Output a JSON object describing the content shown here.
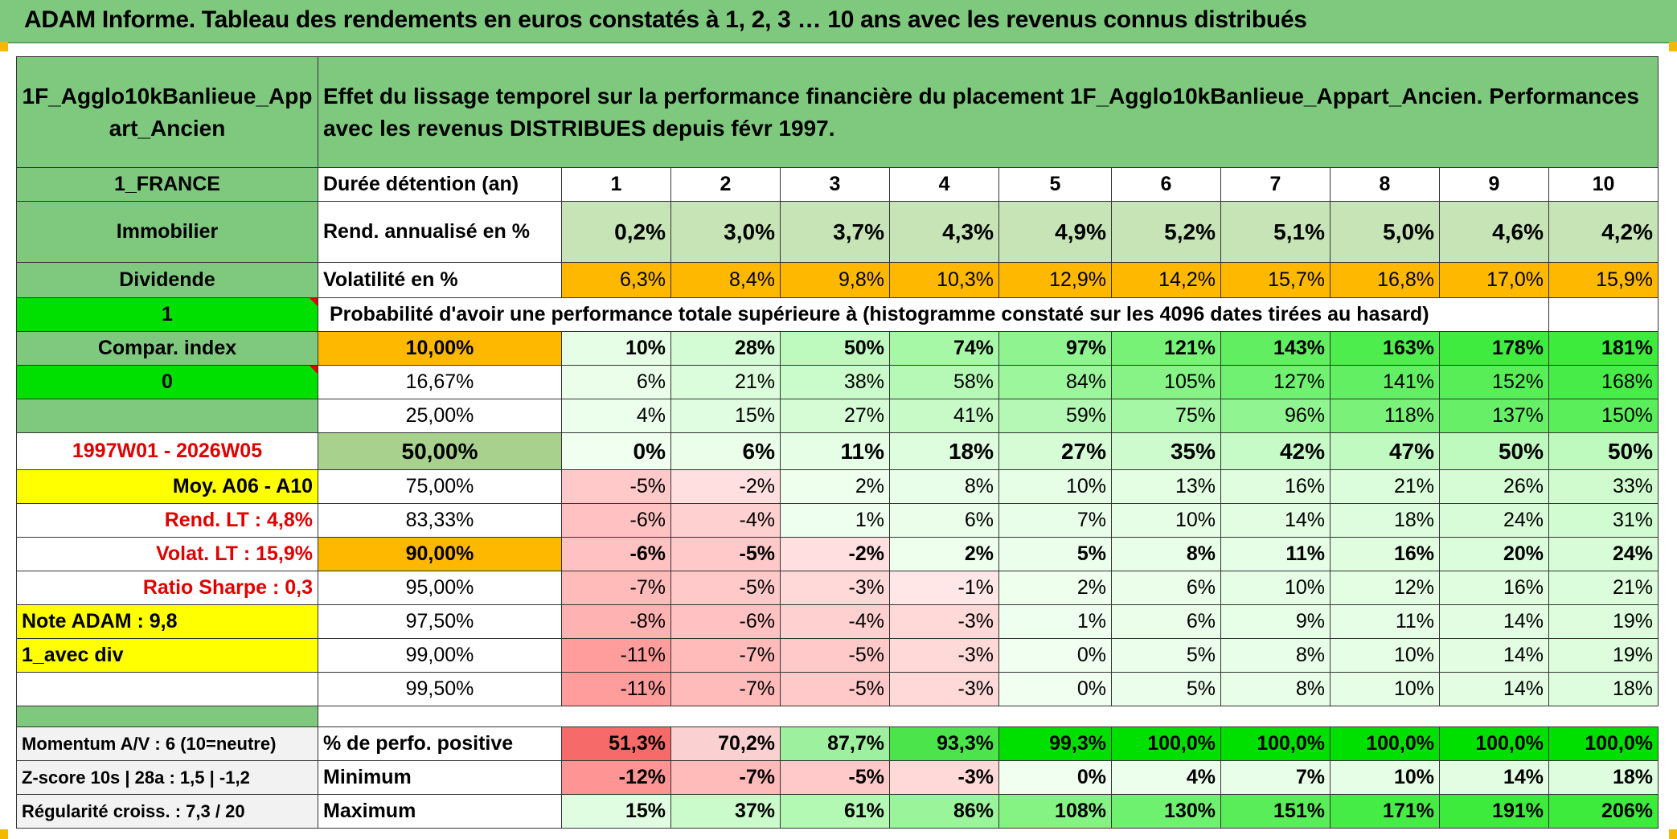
{
  "title": "ADAM Informe. Tableau des rendements en euros constatés à 1, 2, 3 … 10 ans avec les revenus connus distribués",
  "header": {
    "fund_name": "1F_Agglo10kBanlieue_App art_Ancien",
    "description": "Effet du lissage temporel sur la performance financière du placement 1F_Agglo10kBanlieue_Appart_Ancien. Performances avec les revenus DISTRIBUES depuis févr 1997."
  },
  "left": {
    "country": "1_FRANCE",
    "asset_class": "Immobilier",
    "income_type": "Dividende",
    "flag1": "1",
    "compar_index": "Compar. index",
    "flag0": "0",
    "period": "1997W01 - 2026W05",
    "moy": "Moy. A06 - A10",
    "rend_lt": "Rend. LT :   4,8%",
    "volat_lt": "Volat. LT :   15,9%",
    "sharpe": "Ratio Sharpe :    0,3",
    "note": "Note ADAM : 9,8",
    "avec_div": "1_avec div",
    "momentum": "Momentum A/V : 6 (10=neutre)",
    "zscore": "Z-score 10s | 28a : 1,5 | -1,2",
    "regularite": "Régularité croiss. : 7,3 / 20"
  },
  "labels": {
    "duree": "Durée détention (an)",
    "rend": "Rend. annualisé en %",
    "vol": "Volatilité en %",
    "proba": "Probabilité d'avoir une performance totale supérieure à (histogramme constaté sur les 4096 dates tirées au hasard)",
    "pct_pos": "% de perfo. positive",
    "min": "Minimum",
    "max": "Maximum"
  },
  "years": [
    "1",
    "2",
    "3",
    "4",
    "5",
    "6",
    "7",
    "8",
    "9",
    "10"
  ],
  "rend": [
    "0,2%",
    "3,0%",
    "3,7%",
    "4,3%",
    "4,9%",
    "5,2%",
    "5,1%",
    "5,0%",
    "4,6%",
    "4,2%"
  ],
  "vol": [
    "6,3%",
    "8,4%",
    "9,8%",
    "10,3%",
    "12,9%",
    "14,2%",
    "15,7%",
    "16,8%",
    "17,0%",
    "15,9%"
  ],
  "quantiles": [
    {
      "q": "10,00%",
      "v": [
        "10%",
        "28%",
        "50%",
        "74%",
        "97%",
        "121%",
        "143%",
        "163%",
        "178%",
        "181%"
      ]
    },
    {
      "q": "16,67%",
      "v": [
        "6%",
        "21%",
        "38%",
        "58%",
        "84%",
        "105%",
        "127%",
        "141%",
        "152%",
        "168%"
      ]
    },
    {
      "q": "25,00%",
      "v": [
        "4%",
        "15%",
        "27%",
        "41%",
        "59%",
        "75%",
        "96%",
        "118%",
        "137%",
        "150%"
      ]
    },
    {
      "q": "50,00%",
      "v": [
        "0%",
        "6%",
        "11%",
        "18%",
        "27%",
        "35%",
        "42%",
        "47%",
        "50%",
        "50%"
      ]
    },
    {
      "q": "75,00%",
      "v": [
        "-5%",
        "-2%",
        "2%",
        "8%",
        "10%",
        "13%",
        "16%",
        "21%",
        "26%",
        "33%"
      ]
    },
    {
      "q": "83,33%",
      "v": [
        "-6%",
        "-4%",
        "1%",
        "6%",
        "7%",
        "10%",
        "14%",
        "18%",
        "24%",
        "31%"
      ]
    },
    {
      "q": "90,00%",
      "v": [
        "-6%",
        "-5%",
        "-2%",
        "2%",
        "5%",
        "8%",
        "11%",
        "16%",
        "20%",
        "24%"
      ]
    },
    {
      "q": "95,00%",
      "v": [
        "-7%",
        "-5%",
        "-3%",
        "-1%",
        "2%",
        "6%",
        "10%",
        "12%",
        "16%",
        "21%"
      ]
    },
    {
      "q": "97,50%",
      "v": [
        "-8%",
        "-6%",
        "-4%",
        "-3%",
        "1%",
        "6%",
        "9%",
        "11%",
        "14%",
        "19%"
      ]
    },
    {
      "q": "99,00%",
      "v": [
        "-11%",
        "-7%",
        "-5%",
        "-3%",
        "0%",
        "5%",
        "8%",
        "10%",
        "14%",
        "19%"
      ]
    },
    {
      "q": "99,50%",
      "v": [
        "-11%",
        "-7%",
        "-5%",
        "-3%",
        "0%",
        "5%",
        "8%",
        "10%",
        "14%",
        "18%"
      ]
    }
  ],
  "pct_pos": [
    "51,3%",
    "70,2%",
    "87,7%",
    "93,3%",
    "99,3%",
    "100,0%",
    "100,0%",
    "100,0%",
    "100,0%",
    "100,0%"
  ],
  "minimum": [
    "-12%",
    "-7%",
    "-5%",
    "-3%",
    "0%",
    "4%",
    "7%",
    "10%",
    "14%",
    "18%"
  ],
  "maximum": [
    "15%",
    "37%",
    "61%",
    "86%",
    "108%",
    "130%",
    "151%",
    "171%",
    "191%",
    "206%"
  ],
  "colors": {
    "title_bg": "#7fc97f",
    "bright_green": "#00e000",
    "yellow": "#ffff00",
    "orange": "#ffb800",
    "red_text": "#e00000"
  }
}
